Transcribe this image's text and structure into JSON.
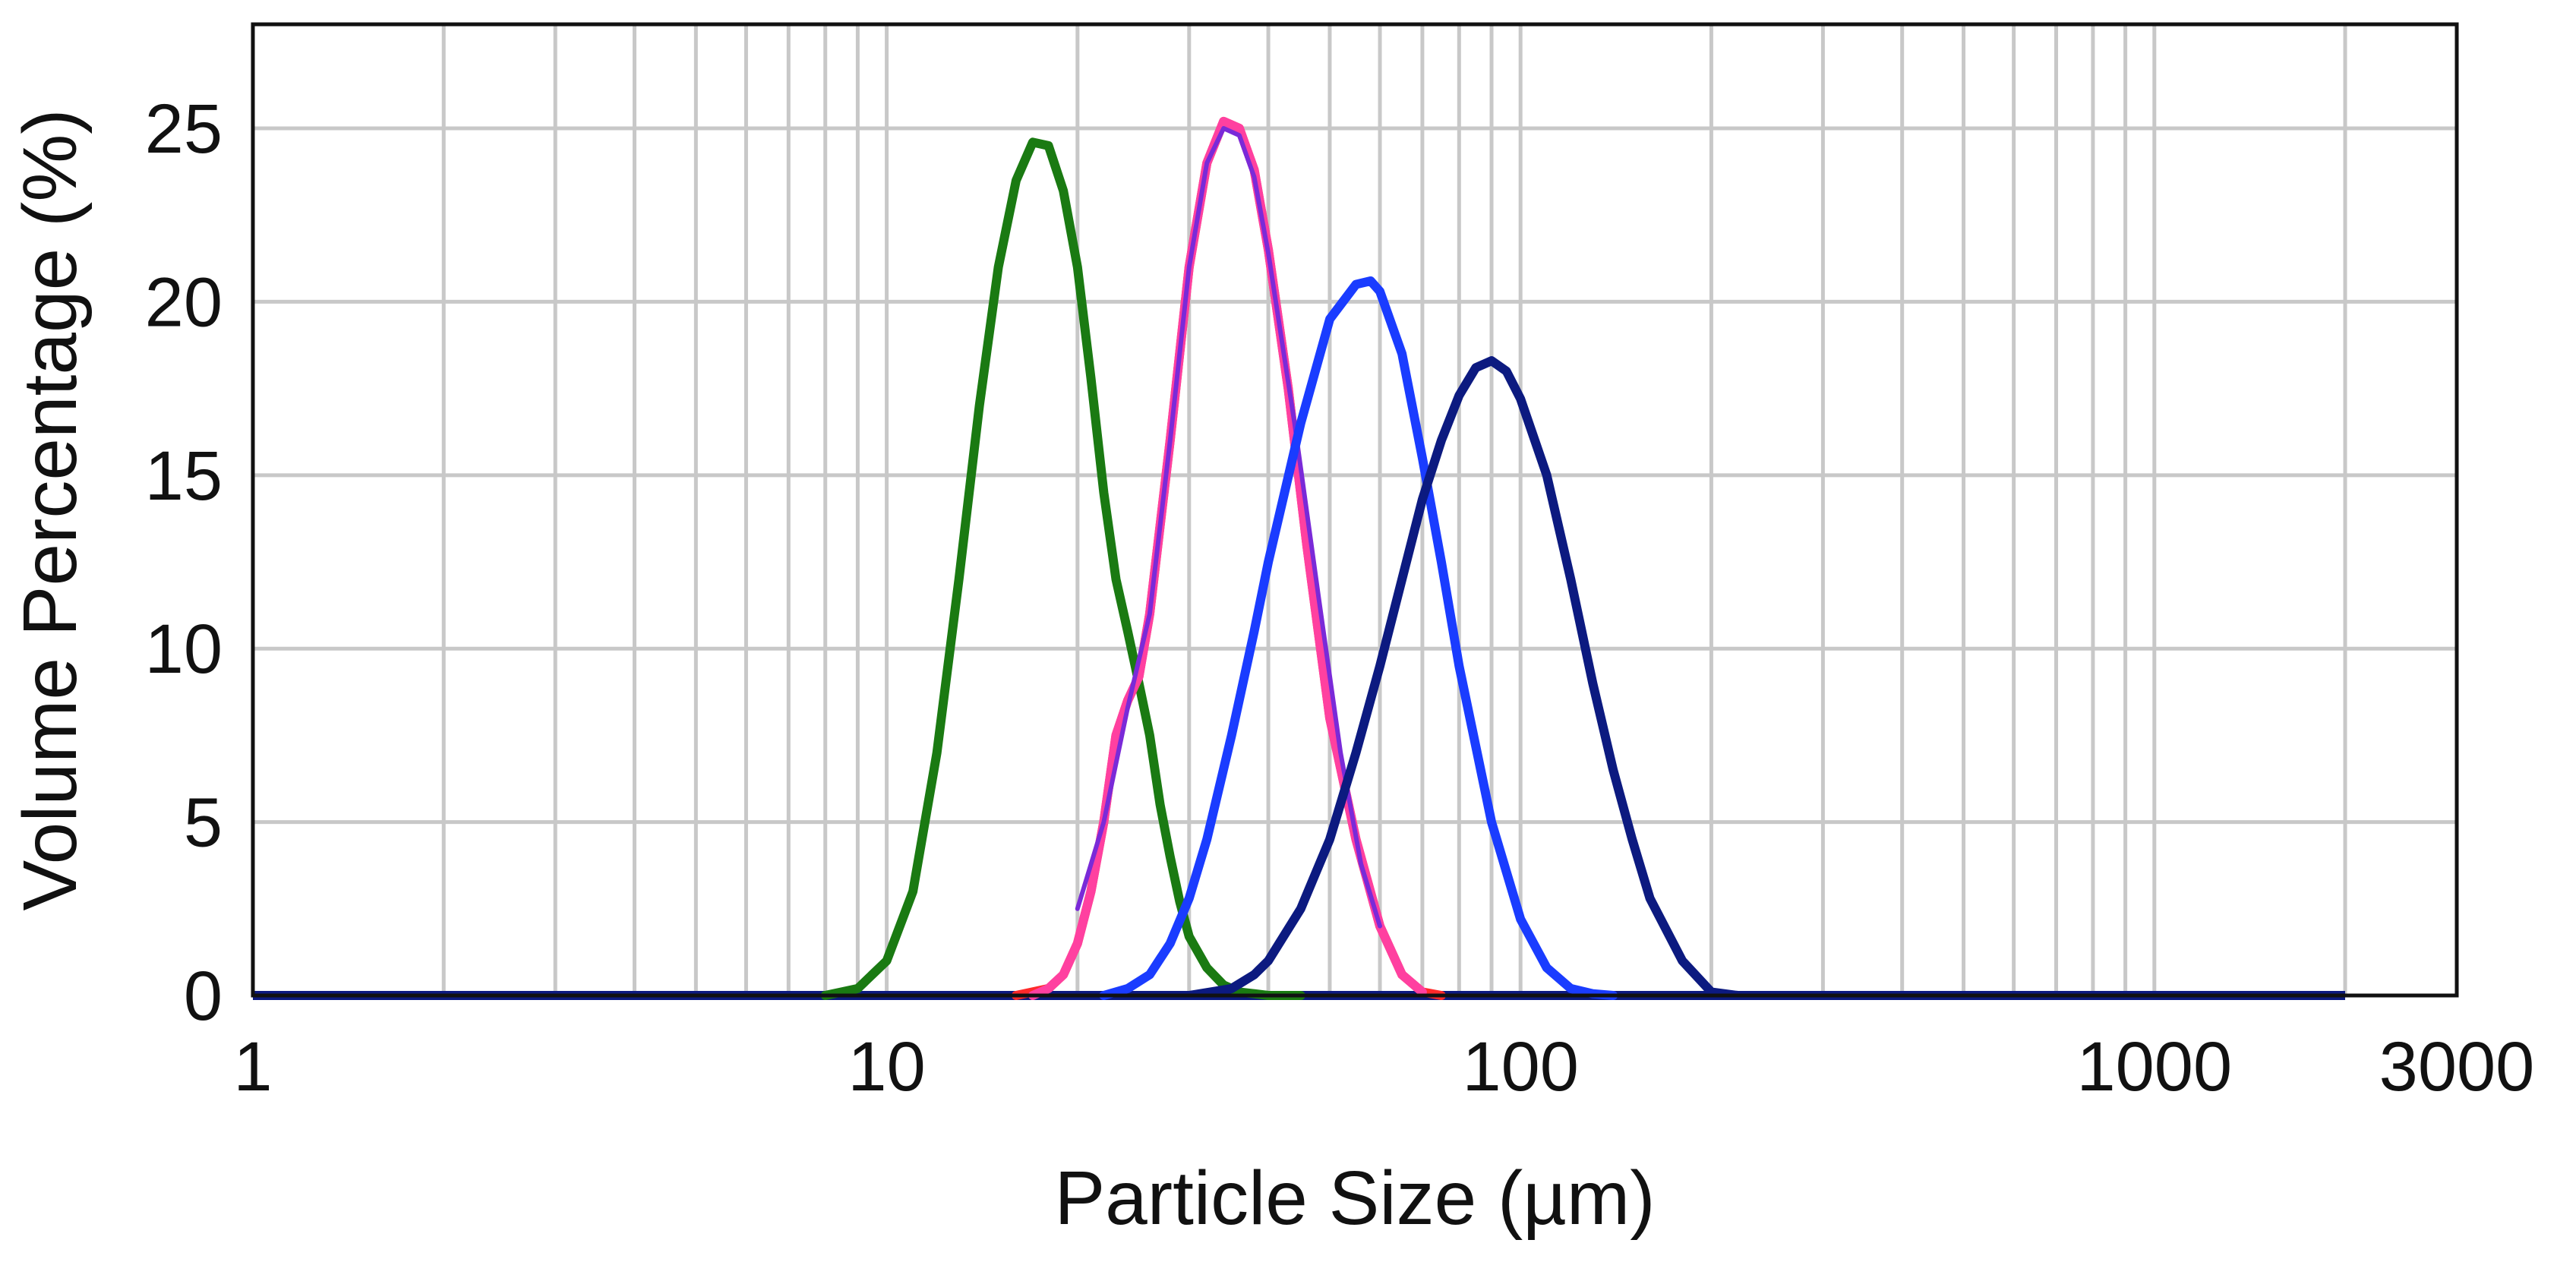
{
  "chart_data": {
    "type": "line",
    "title": "",
    "xlabel": "Particle Size (µm)",
    "ylabel": "Volume Percentage (%)",
    "x_scale": "log",
    "xlim": [
      1,
      3000
    ],
    "ylim": [
      0,
      28
    ],
    "x_ticks": [
      1,
      10,
      100,
      1000,
      3000
    ],
    "x_tick_labels": [
      "1",
      "10",
      "100",
      "1000",
      "3000"
    ],
    "y_ticks": [
      0,
      5,
      10,
      15,
      20,
      25
    ],
    "y_tick_labels": [
      "0",
      "5",
      "10",
      "15",
      "20",
      "25"
    ],
    "grid": true,
    "legend": "none",
    "x_data_end": 2000,
    "series": [
      {
        "color": "#1a7a12",
        "x": [
          8,
          9,
          10,
          11,
          12,
          13,
          14,
          15,
          16,
          17,
          18,
          19,
          20,
          21,
          22,
          23,
          24,
          25,
          26,
          27,
          28,
          29,
          30,
          32,
          34,
          36,
          38,
          40,
          45
        ],
        "y": [
          0,
          0.2,
          1.0,
          3.0,
          7.0,
          12.0,
          17.0,
          21.0,
          23.5,
          24.6,
          24.5,
          23.2,
          21.0,
          17.8,
          14.5,
          12.0,
          10.5,
          9.0,
          7.5,
          5.5,
          4.0,
          2.7,
          1.7,
          0.8,
          0.3,
          0.1,
          0.05,
          0,
          0
        ]
      },
      {
        "color": "#ff2a2a",
        "x": [
          16,
          18,
          19,
          20,
          21,
          22,
          23,
          24,
          25,
          26,
          28,
          30,
          32,
          34,
          36,
          38,
          40,
          43,
          46,
          50,
          55,
          60,
          65,
          70,
          75
        ],
        "y": [
          0,
          0.2,
          0.6,
          1.5,
          3.0,
          5.0,
          7.5,
          8.5,
          9.2,
          11.0,
          16.0,
          21.0,
          24.0,
          25.2,
          25.0,
          23.8,
          21.5,
          17.5,
          13.0,
          8.0,
          4.5,
          2.0,
          0.6,
          0.1,
          0
        ]
      },
      {
        "color": "#ff40a0",
        "x": [
          17,
          18,
          19,
          20,
          21,
          22,
          23,
          24,
          25,
          26,
          28,
          30,
          32,
          34,
          36,
          38,
          40,
          43,
          46,
          50,
          55,
          60,
          65,
          70
        ],
        "y": [
          0,
          0.2,
          0.6,
          1.5,
          3.0,
          5.0,
          7.5,
          8.5,
          9.2,
          11.0,
          16.0,
          21.0,
          24.0,
          25.2,
          25.0,
          23.8,
          21.5,
          17.5,
          13.0,
          8.0,
          4.5,
          2.0,
          0.6,
          0.1
        ]
      },
      {
        "color": "#7a2ad8",
        "x": [
          20,
          22,
          24,
          26,
          28,
          30,
          32,
          34,
          36,
          38,
          40,
          44,
          48,
          52,
          56,
          60
        ],
        "y": [
          2.5,
          5.0,
          8.3,
          11.0,
          16.0,
          21.0,
          24.0,
          25.0,
          24.8,
          23.6,
          21.4,
          16.5,
          11.5,
          7.0,
          3.8,
          2.0
        ]
      },
      {
        "color": "#1a3cff",
        "x": [
          22,
          24,
          26,
          28,
          30,
          32,
          35,
          38,
          40,
          45,
          50,
          55,
          58,
          60,
          65,
          70,
          75,
          80,
          90,
          100,
          110,
          120,
          130,
          140
        ],
        "y": [
          0,
          0.2,
          0.6,
          1.5,
          2.8,
          4.5,
          7.5,
          10.5,
          12.5,
          16.5,
          19.5,
          20.5,
          20.6,
          20.3,
          18.5,
          15.5,
          12.5,
          9.5,
          5.0,
          2.2,
          0.8,
          0.2,
          0.05,
          0
        ]
      },
      {
        "color": "#0c1a80",
        "x": [
          30,
          35,
          38,
          40,
          45,
          50,
          55,
          60,
          65,
          70,
          75,
          80,
          85,
          90,
          95,
          100,
          110,
          120,
          130,
          140,
          150,
          160,
          180,
          200,
          220
        ],
        "y": [
          0,
          0.2,
          0.6,
          1.0,
          2.5,
          4.5,
          7.0,
          9.5,
          12.0,
          14.3,
          16.0,
          17.3,
          18.1,
          18.3,
          18.0,
          17.2,
          15.0,
          12.0,
          9.0,
          6.5,
          4.5,
          2.8,
          1.0,
          0.1,
          0
        ]
      }
    ]
  }
}
